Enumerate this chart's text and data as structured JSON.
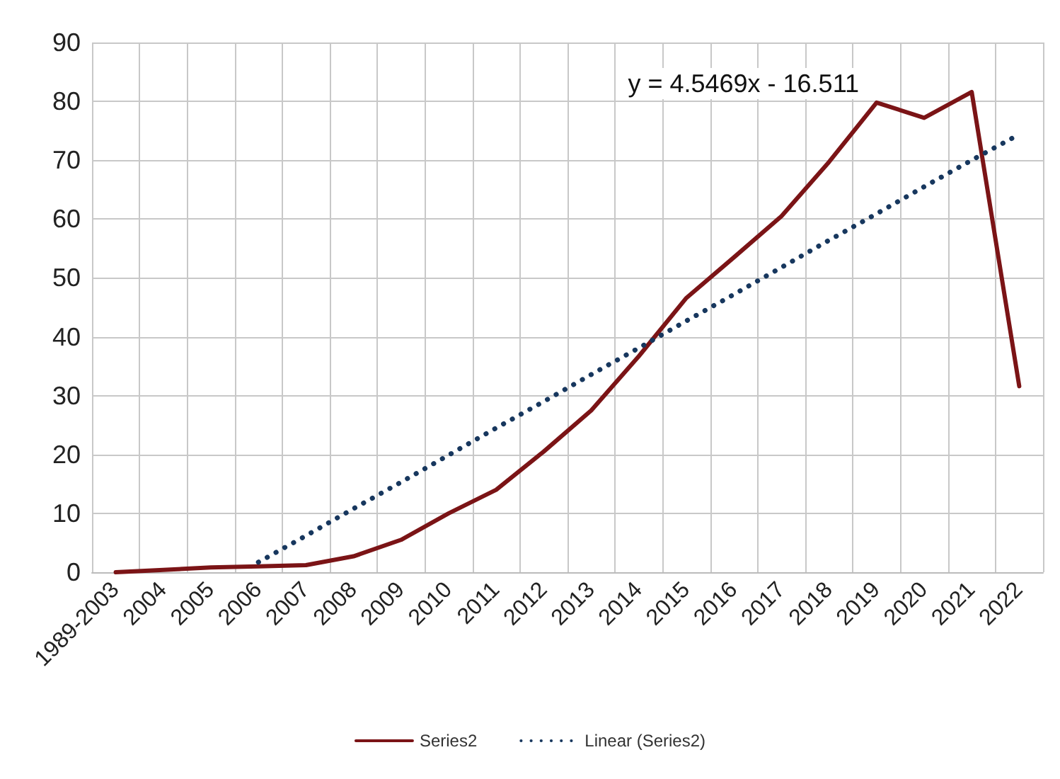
{
  "chart_data": {
    "type": "line",
    "categories": [
      "1989-2003",
      "2004",
      "2005",
      "2006",
      "2007",
      "2008",
      "2009",
      "2010",
      "2011",
      "2012",
      "2013",
      "2014",
      "2015",
      "2016",
      "2017",
      "2018",
      "2019",
      "2020",
      "2021",
      "2022"
    ],
    "series": [
      {
        "name": "Series2",
        "color": "#7b1416",
        "line_style": "solid",
        "values": [
          0,
          0.4,
          0.8,
          1.0,
          1.2,
          2.7,
          5.5,
          10,
          14,
          20.5,
          27.5,
          36.7,
          46.6,
          53.5,
          60.5,
          69.7,
          79.8,
          77.2,
          81.6,
          31.6
        ]
      },
      {
        "name": "Linear (Series2)",
        "type": "line",
        "color": "#17375e",
        "line_style": "dotted",
        "values": [
          null,
          null,
          null,
          1.7,
          6.2,
          10.8,
          15.3,
          19.9,
          24.5,
          29.0,
          33.6,
          38.1,
          42.7,
          47.2,
          51.8,
          56.4,
          60.9,
          65.5,
          70.0,
          74.4
        ]
      }
    ],
    "annotations": [
      "y = 4.5469x - 16.511"
    ],
    "ylim": [
      0,
      90
    ],
    "yticks": [
      0,
      10,
      20,
      30,
      40,
      50,
      60,
      70,
      80,
      90
    ],
    "grid": true,
    "legend": "bottom",
    "marker": "none"
  }
}
